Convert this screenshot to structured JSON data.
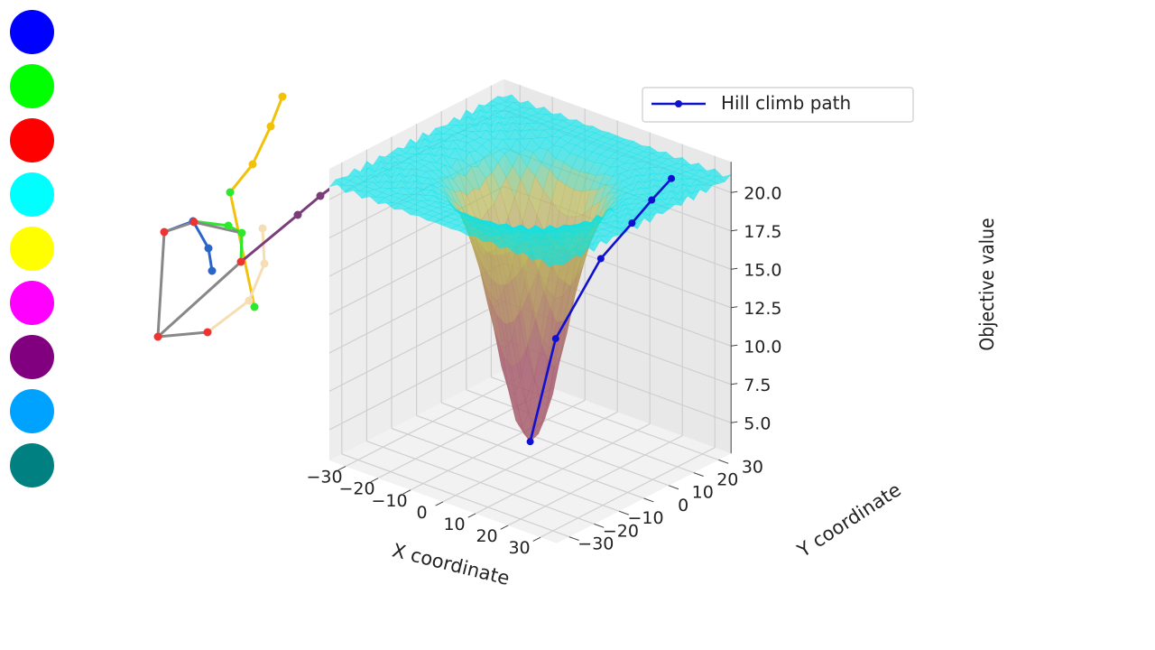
{
  "palette": [
    "#0000ff",
    "#00ff00",
    "#ff0000",
    "#00ffff",
    "#ffff00",
    "#ff00ff",
    "#800080",
    "#00a2ff",
    "#008080"
  ],
  "chart_data": {
    "type": "surface3d",
    "title": "",
    "xlabel": "X coordinate",
    "ylabel": "Y coordinate",
    "zlabel": "Objective value",
    "xlim": [
      -35,
      35
    ],
    "ylim": [
      -35,
      35
    ],
    "zlim": [
      3,
      22
    ],
    "x_ticks": [
      "−30",
      "−20",
      "−10",
      "0",
      "10",
      "20",
      "30"
    ],
    "y_ticks": [
      "−30",
      "−20",
      "−10",
      "0",
      "10",
      "20",
      "30"
    ],
    "z_ticks": [
      "5.0",
      "7.5",
      "10.0",
      "12.5",
      "15.0",
      "17.5",
      "20.0"
    ],
    "surface_colors": {
      "high": "#00e5ee",
      "mid": "#b8b84a",
      "low": "#a86070"
    },
    "legend": {
      "placement": "top-right",
      "entries": [
        "Hill climb path"
      ]
    },
    "series": [
      {
        "name": "Hill climb path",
        "color": "#1010d0",
        "points": [
          {
            "x": 22,
            "y": 28,
            "z": 20.5
          },
          {
            "x": 19,
            "y": 24,
            "z": 19.2
          },
          {
            "x": 16,
            "y": 20,
            "z": 17.8
          },
          {
            "x": 11,
            "y": 14,
            "z": 15.6
          },
          {
            "x": 4,
            "y": 5,
            "z": 10.6
          },
          {
            "x": 0,
            "y": 0,
            "z": 4.0
          }
        ]
      }
    ],
    "grid": true
  }
}
